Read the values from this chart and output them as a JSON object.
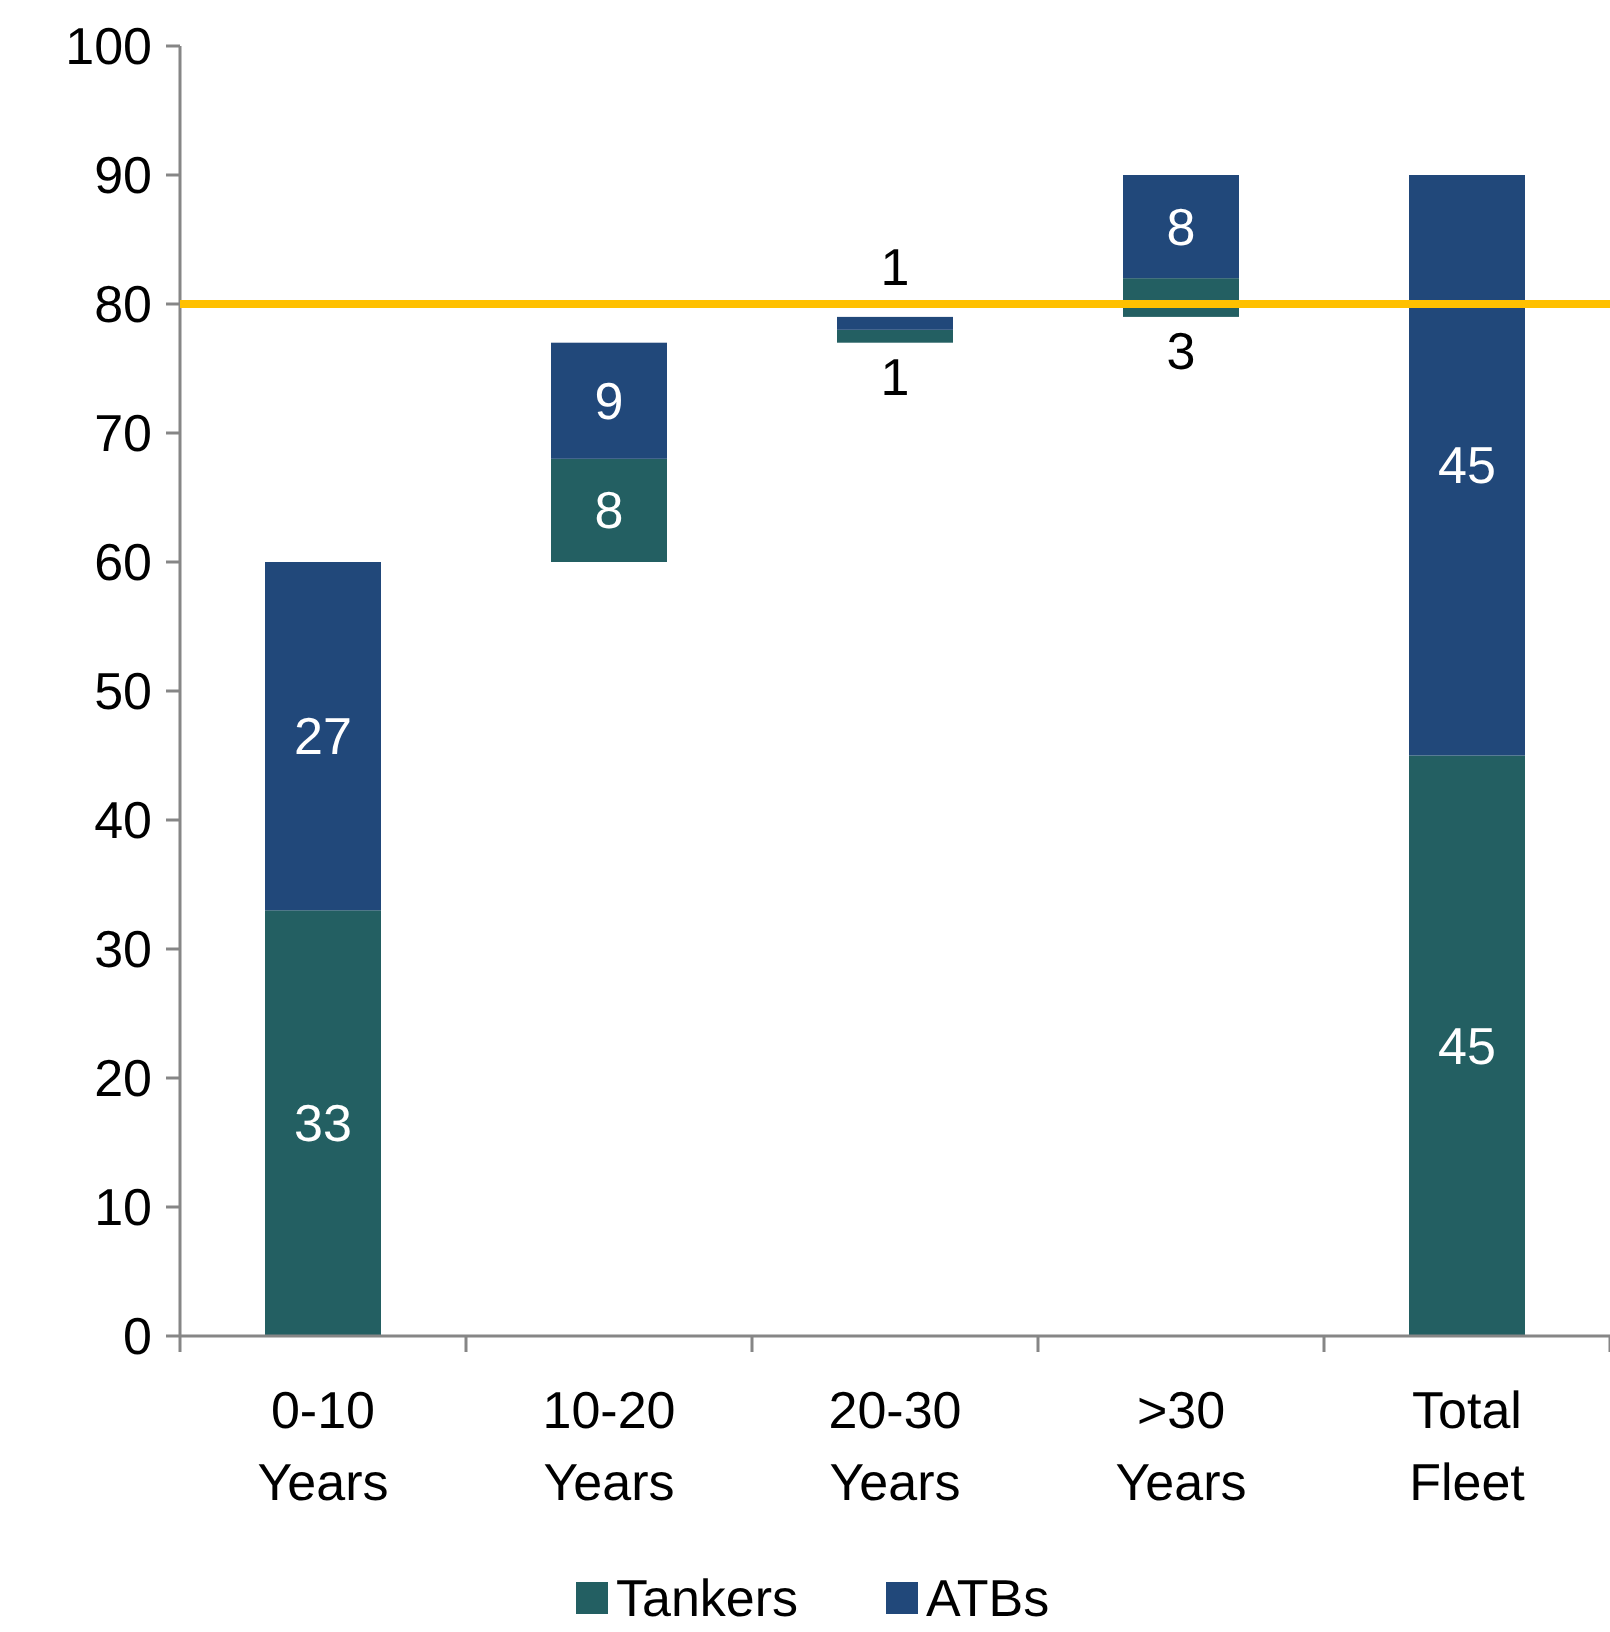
{
  "chart_data": {
    "type": "bar",
    "categories": [
      "0-10 Years",
      "10-20 Years",
      "20-30 Years",
      ">30 Years",
      "Total Fleet"
    ],
    "series": [
      {
        "name": "Tankers",
        "color": "#235f62",
        "values": [
          33,
          8,
          1,
          3,
          45
        ],
        "base": [
          0,
          60,
          77,
          79,
          0
        ]
      },
      {
        "name": "ATBs",
        "color": "#21487a",
        "values": [
          27,
          9,
          1,
          8,
          45
        ],
        "base": [
          33,
          68,
          78,
          82,
          45
        ]
      }
    ],
    "ylim": [
      0,
      100
    ],
    "yticks": [
      0,
      10,
      20,
      30,
      40,
      50,
      60,
      70,
      80,
      90,
      100
    ],
    "ref_lines": [
      {
        "axis": "y",
        "value": 80,
        "color": "#ffc000"
      }
    ],
    "data_labels": true,
    "legend": "bottom",
    "grid": false
  }
}
